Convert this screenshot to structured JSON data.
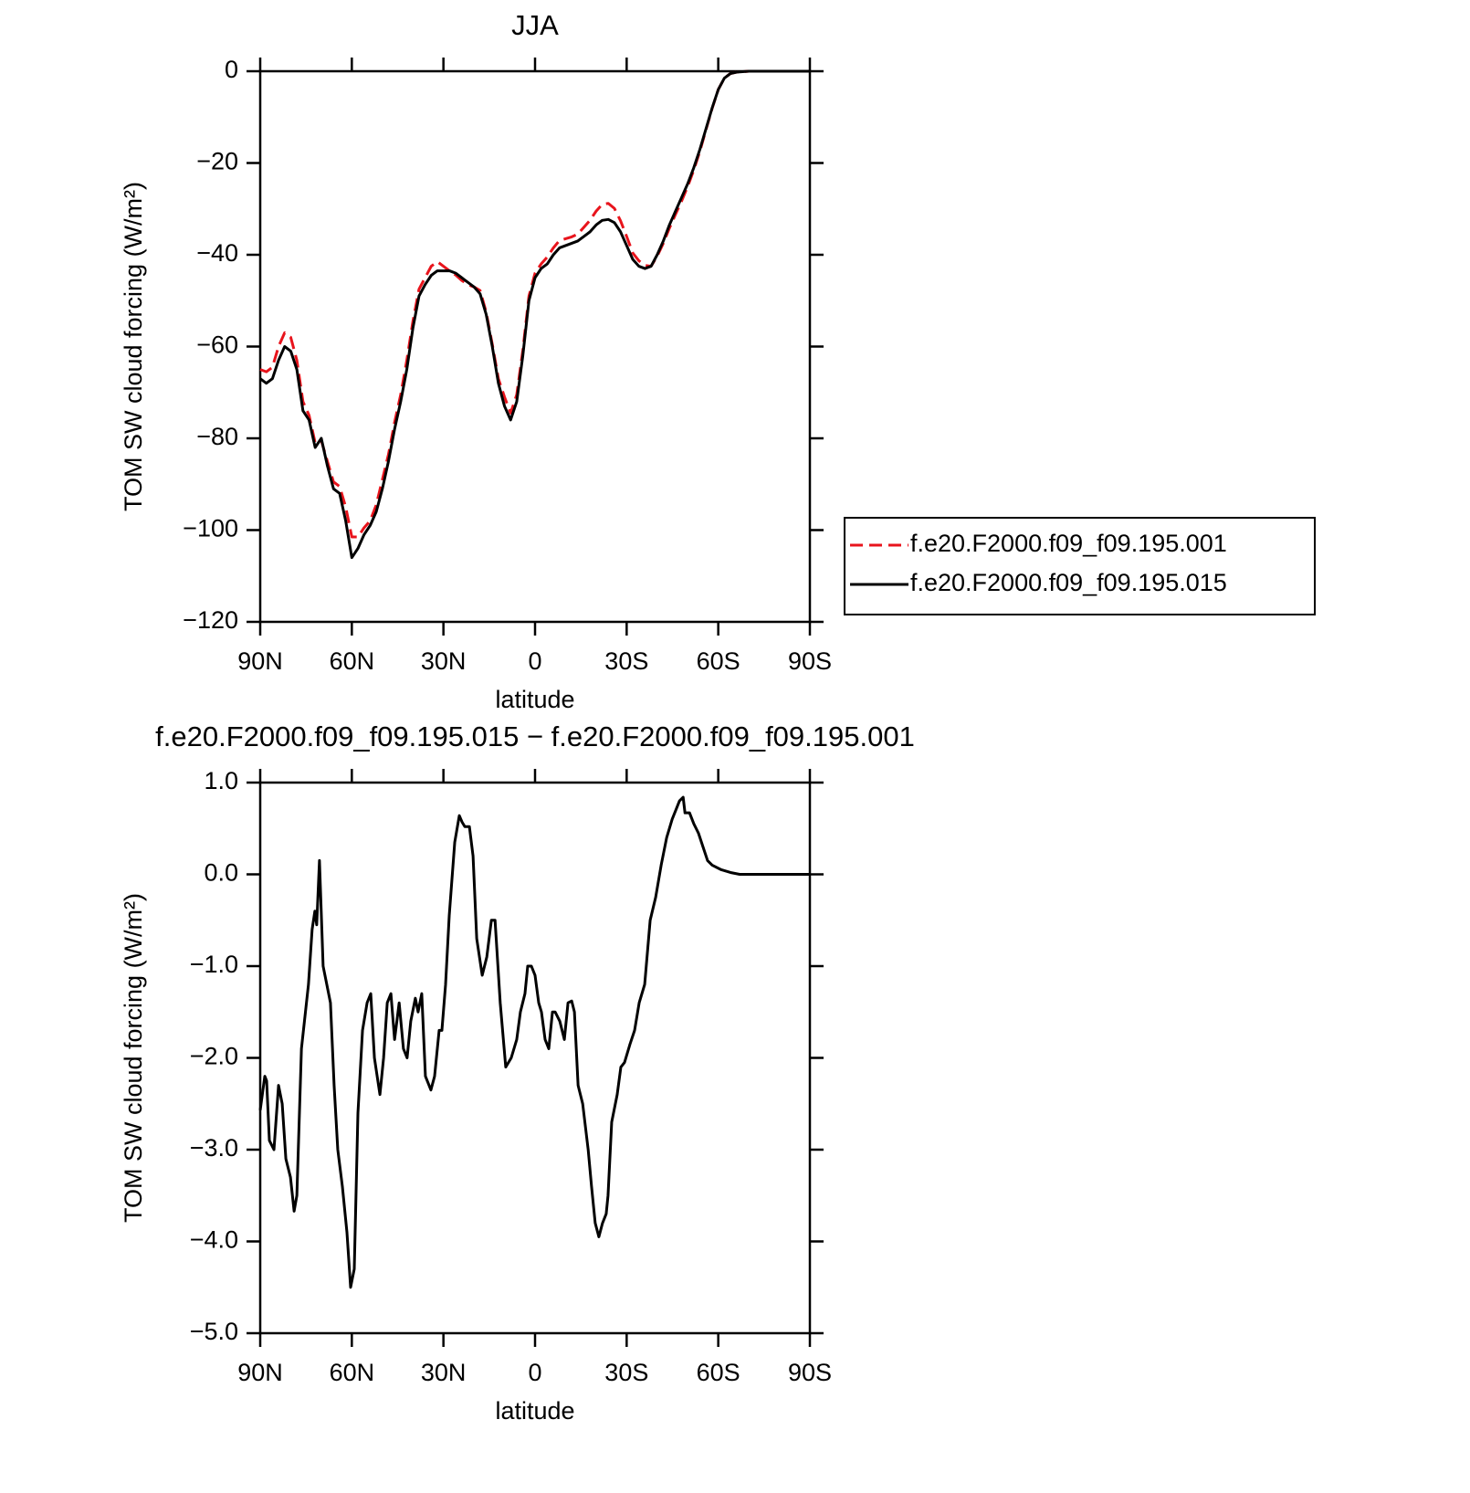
{
  "chart_data": [
    {
      "type": "line",
      "title": "JJA",
      "xlabel": "latitude",
      "ylabel": "TOM SW cloud forcing (W/m²)",
      "xlim": [
        90,
        -90
      ],
      "xticks": [
        {
          "value": 90,
          "label": "90N"
        },
        {
          "value": 60,
          "label": "60N"
        },
        {
          "value": 30,
          "label": "30N"
        },
        0,
        {
          "value": -30,
          "label": "30S"
        },
        {
          "value": -60,
          "label": "60S"
        },
        {
          "value": -90,
          "label": "90S"
        }
      ],
      "ylim": [
        -120,
        0
      ],
      "yticks": [
        {
          "value": -120,
          "label": "−120"
        },
        {
          "value": -100,
          "label": "−100"
        },
        {
          "value": -80,
          "label": "−80"
        },
        {
          "value": -60,
          "label": "−60"
        },
        {
          "value": -40,
          "label": "−40"
        },
        {
          "value": -20,
          "label": "−20"
        },
        0
      ],
      "legend": "right",
      "x": [
        90,
        88,
        86,
        84,
        82,
        80,
        78,
        76,
        74,
        72,
        70,
        68,
        66,
        64,
        62,
        60,
        58,
        56,
        54,
        52,
        50,
        48,
        46,
        44,
        42,
        40,
        38,
        36,
        34,
        32,
        30,
        28,
        26,
        24,
        22,
        20,
        18,
        16,
        14,
        12,
        10,
        8,
        6,
        4,
        2,
        0,
        -2,
        -4,
        -6,
        -8,
        -10,
        -12,
        -14,
        -16,
        -18,
        -20,
        -22,
        -24,
        -26,
        -28,
        -30,
        -32,
        -34,
        -36,
        -38,
        -40,
        -42,
        -44,
        -46,
        -48,
        -50,
        -52,
        -54,
        -56,
        -58,
        -60,
        -62,
        -64,
        -66,
        -68,
        -70,
        -72,
        -74,
        -76,
        -78,
        -80,
        -82,
        -84,
        -86,
        -88,
        -90
      ],
      "series": [
        {
          "name": "f.e20.F2000.f09_f09.195.001",
          "color": "#e8141c",
          "dash": true,
          "values": [
            -65,
            -65.5,
            -64.5,
            -60,
            -57,
            -58,
            -63,
            -72,
            -75,
            -81,
            -80.5,
            -85,
            -89.5,
            -90.5,
            -95,
            -101.5,
            -101.5,
            -99.5,
            -98,
            -94.5,
            -89,
            -83.5,
            -76.5,
            -70.5,
            -63,
            -54.5,
            -47.5,
            -45,
            -42.5,
            -41.5,
            -42.5,
            -43.5,
            -44.4,
            -45.6,
            -46.5,
            -47,
            -47.8,
            -52.5,
            -59.5,
            -67,
            -71,
            -74.5,
            -70.5,
            -60.8,
            -49,
            -44,
            -42,
            -40.5,
            -38.5,
            -36.9,
            -36.5,
            -36.1,
            -35.5,
            -34,
            -32.5,
            -30.5,
            -29,
            -28.8,
            -29.9,
            -32.6,
            -36,
            -39.6,
            -41.3,
            -42.3,
            -42.5,
            -40.3,
            -37.5,
            -34.2,
            -31.2,
            -28.3,
            -25.1,
            -21.5,
            -17.4,
            -12.7,
            -8.1,
            -4,
            -1.5,
            -0.5,
            -0.2,
            -0.1,
            0,
            0,
            0,
            0,
            0,
            0,
            0,
            0,
            0,
            0,
            0
          ]
        },
        {
          "name": "f.e20.F2000.f09_f09.195.015",
          "color": "#000000",
          "dash": false,
          "values": [
            -67,
            -68,
            -67,
            -63,
            -60,
            -61,
            -65,
            -74,
            -76,
            -82,
            -80,
            -86,
            -91,
            -92,
            -98,
            -106,
            -104,
            -101,
            -99,
            -96,
            -91,
            -85,
            -78,
            -72,
            -65,
            -56,
            -49,
            -46.5,
            -44.5,
            -43.5,
            -43.5,
            -43.5,
            -44,
            -45,
            -46,
            -47,
            -48.5,
            -53,
            -60,
            -68,
            -73,
            -76,
            -72,
            -62,
            -50,
            -45,
            -43,
            -42,
            -40,
            -38.5,
            -38,
            -37.5,
            -37,
            -36,
            -35,
            -33.5,
            -32.5,
            -32.3,
            -33,
            -35,
            -38,
            -41,
            -42.5,
            -43,
            -42.5,
            -40,
            -37,
            -33.5,
            -30.5,
            -27.5,
            -24.5,
            -21,
            -17,
            -12.5,
            -8,
            -4,
            -1.5,
            -0.5,
            -0.2,
            -0.1,
            0,
            0,
            0,
            0,
            0,
            0,
            0,
            0,
            0,
            0,
            0
          ]
        }
      ]
    },
    {
      "type": "line",
      "title": "f.e20.F2000.f09_f09.195.015 − f.e20.F2000.f09_f09.195.001",
      "xlabel": "latitude",
      "ylabel": "TOM SW cloud forcing (W/m²)",
      "xlim": [
        90,
        -90
      ],
      "xticks": [
        {
          "value": 90,
          "label": "90N"
        },
        {
          "value": 60,
          "label": "60N"
        },
        {
          "value": 30,
          "label": "30N"
        },
        0,
        {
          "value": -30,
          "label": "30S"
        },
        {
          "value": -60,
          "label": "60S"
        },
        {
          "value": -90,
          "label": "90S"
        }
      ],
      "ylim": [
        -5,
        1
      ],
      "yticks": [
        {
          "value": -5,
          "label": "−5.0"
        },
        {
          "value": -4,
          "label": "−4.0"
        },
        {
          "value": -3,
          "label": "−3.0"
        },
        {
          "value": -2,
          "label": "−2.0"
        },
        {
          "value": -1,
          "label": "−1.0"
        },
        {
          "value": 0,
          "label": "0.0"
        },
        {
          "value": 1,
          "label": "1.0"
        }
      ],
      "x": [
        90.0,
        88.5,
        87.9,
        87.0,
        85.5,
        84.0,
        82.8,
        81.6,
        80.1,
        78.9,
        78.0,
        76.5,
        74.2,
        73.0,
        72.1,
        71.5,
        70.6,
        69.4,
        68.2,
        67.0,
        65.8,
        64.6,
        63.1,
        61.6,
        60.4,
        59.2,
        58.0,
        56.5,
        55.0,
        53.8,
        52.6,
        50.8,
        49.6,
        48.4,
        47.2,
        46.0,
        44.5,
        43.1,
        41.9,
        40.7,
        39.2,
        38.3,
        37.1,
        35.9,
        34.1,
        32.9,
        31.4,
        30.5,
        29.3,
        28.1,
        26.3,
        24.8,
        23.9,
        23.0,
        21.5,
        20.3,
        19.1,
        17.3,
        15.8,
        14.3,
        13.1,
        11.4,
        9.6,
        7.8,
        6.0,
        4.8,
        3.3,
        2.4,
        1.2,
        0.0,
        -1.2,
        -2.1,
        -3.3,
        -4.5,
        -5.7,
        -6.6,
        -8.1,
        -9.6,
        -10.8,
        -12.0,
        -12.9,
        -14.1,
        -15.6,
        -17.4,
        -18.5,
        -19.7,
        -20.9,
        -22.1,
        -23.3,
        -23.9,
        -25.1,
        -26.9,
        -28.1,
        -29.3,
        -31.1,
        -32.6,
        -34.1,
        -35.9,
        -37.7,
        -39.5,
        -41.3,
        -43.1,
        -44.9,
        -46.1,
        -47.3,
        -48.5,
        -49.1,
        -50.6,
        -52.0,
        -53.5,
        -55.0,
        -56.5,
        -58.0,
        -61.0,
        -64.0,
        -67.0,
        -70,
        -80,
        -90
      ],
      "color": "#000000",
      "values": [
        -2.57,
        -2.2,
        -2.25,
        -2.9,
        -3.0,
        -2.3,
        -2.5,
        -3.1,
        -3.3,
        -3.67,
        -3.5,
        -1.9,
        -1.2,
        -0.6,
        -0.4,
        -0.55,
        0.15,
        -1.0,
        -1.2,
        -1.4,
        -2.3,
        -3.0,
        -3.4,
        -3.9,
        -4.5,
        -4.3,
        -2.6,
        -1.7,
        -1.4,
        -1.3,
        -2.0,
        -2.4,
        -2.0,
        -1.4,
        -1.3,
        -1.8,
        -1.4,
        -1.9,
        -2.0,
        -1.6,
        -1.35,
        -1.5,
        -1.3,
        -2.2,
        -2.35,
        -2.2,
        -1.7,
        -1.7,
        -1.2,
        -0.45,
        0.35,
        0.64,
        0.57,
        0.52,
        0.52,
        0.2,
        -0.7,
        -1.1,
        -0.9,
        -0.5,
        -0.5,
        -1.4,
        -2.1,
        -2.0,
        -1.8,
        -1.5,
        -1.3,
        -1.0,
        -1.0,
        -1.1,
        -1.4,
        -1.5,
        -1.8,
        -1.9,
        -1.5,
        -1.5,
        -1.6,
        -1.8,
        -1.4,
        -1.38,
        -1.5,
        -2.3,
        -2.5,
        -3.0,
        -3.4,
        -3.8,
        -3.95,
        -3.8,
        -3.7,
        -3.5,
        -2.7,
        -2.4,
        -2.1,
        -2.05,
        -1.85,
        -1.7,
        -1.4,
        -1.2,
        -0.5,
        -0.25,
        0.1,
        0.4,
        0.6,
        0.7,
        0.8,
        0.84,
        0.67,
        0.67,
        0.55,
        0.45,
        0.3,
        0.15,
        0.1,
        0.05,
        0.02,
        0.0,
        0,
        0,
        0
      ]
    }
  ]
}
